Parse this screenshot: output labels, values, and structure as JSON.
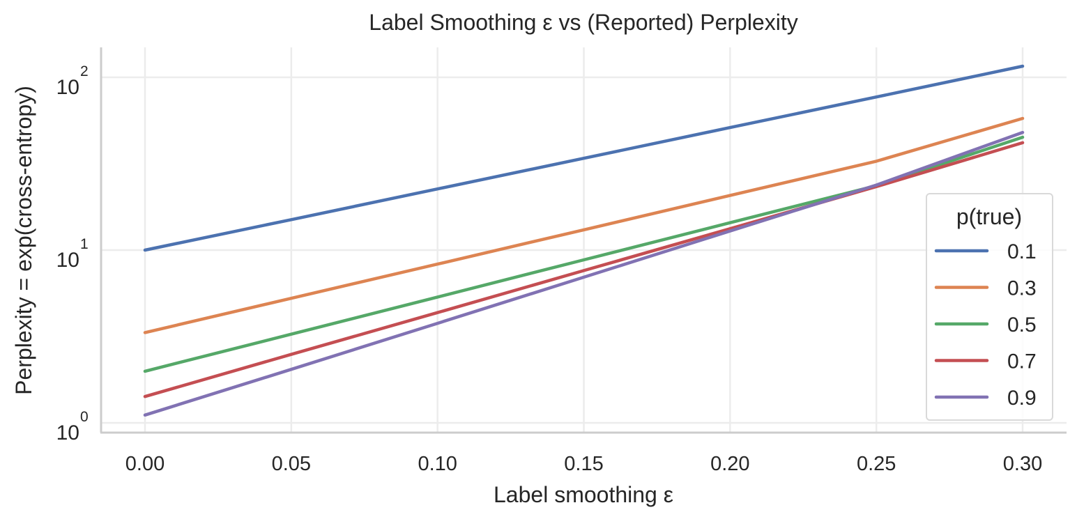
{
  "chart_data": {
    "type": "line",
    "title": "Label Smoothing ε vs (Reported) Perplexity",
    "xlabel": "Label smoothing ε",
    "ylabel": "Perplexity = exp(cross-entropy)",
    "xlim": [
      -0.015,
      0.315
    ],
    "ylim": [
      0.88,
      155
    ],
    "yscale": "log",
    "grid": true,
    "x_ticks": [
      0.0,
      0.05,
      0.1,
      0.15,
      0.2,
      0.25,
      0.3
    ],
    "x_tick_labels": [
      "0.00",
      "0.05",
      "0.10",
      "0.15",
      "0.20",
      "0.25",
      "0.30"
    ],
    "y_ticks": [
      1,
      10,
      100
    ],
    "y_tick_labels": [
      {
        "base": "10",
        "exp": "0"
      },
      {
        "base": "10",
        "exp": "1"
      },
      {
        "base": "10",
        "exp": "2"
      }
    ],
    "x": [
      0.0,
      0.05,
      0.1,
      0.15,
      0.2,
      0.25,
      0.3
    ],
    "legend": {
      "title": "p(true)",
      "position": "lower-right"
    },
    "series": [
      {
        "name": "0.1",
        "color": "#4c72b0",
        "values": [
          10.0,
          15.0,
          22.6,
          34.0,
          51.2,
          77.0,
          116.0
        ]
      },
      {
        "name": "0.3",
        "color": "#dd8452",
        "values": [
          3.33,
          5.26,
          8.3,
          13.1,
          20.7,
          32.7,
          57.8
        ]
      },
      {
        "name": "0.5",
        "color": "#55a868",
        "values": [
          1.99,
          3.26,
          5.35,
          8.78,
          14.4,
          23.6,
          45.0
        ]
      },
      {
        "name": "0.7",
        "color": "#c44e52",
        "values": [
          1.42,
          2.49,
          4.35,
          7.61,
          13.3,
          23.3,
          41.8
        ]
      },
      {
        "name": "0.9",
        "color": "#8172b3",
        "values": [
          1.11,
          2.04,
          3.77,
          6.97,
          12.9,
          23.8,
          48.0
        ]
      }
    ]
  }
}
